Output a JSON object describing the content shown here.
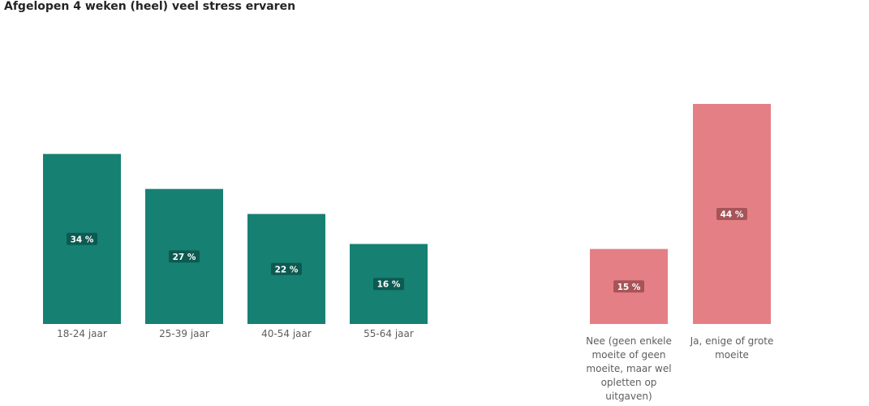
{
  "title": "Afgelopen 4 weken (heel) veel stress ervaren",
  "chart_data": [
    {
      "type": "bar",
      "categories": [
        "18-24 jaar",
        "25-39 jaar",
        "40-54 jaar",
        "55-64 jaar"
      ],
      "values": [
        34,
        27,
        22,
        16
      ],
      "data_labels": [
        "34 %",
        "27 %",
        "22 %",
        "16 %"
      ],
      "color": "#168073",
      "label_bg": "#0d5a51",
      "ylim": [
        0,
        44
      ]
    },
    {
      "type": "bar",
      "categories": [
        "Nee (geen enkele moeite of geen moeite, maar wel opletten op uitgaven)",
        "Ja, enige of grote moeite"
      ],
      "category_lines": [
        [
          "Nee (geen enkele",
          "moeite of geen",
          "moeite, maar wel",
          "opletten op",
          "uitgaven)"
        ],
        [
          "Ja, enige of grote",
          "moeite"
        ]
      ],
      "values": [
        15,
        44
      ],
      "data_labels": [
        "15 %",
        "44 %"
      ],
      "color": "#e57f86",
      "label_bg": "#a75458",
      "ylim": [
        0,
        44
      ]
    }
  ]
}
